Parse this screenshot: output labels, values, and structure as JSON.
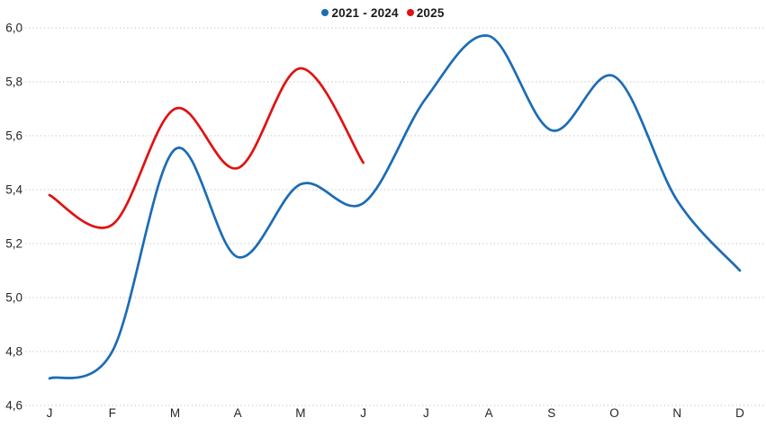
{
  "chart_data": {
    "type": "line",
    "x_categories": [
      "J",
      "F",
      "M",
      "A",
      "M",
      "J",
      "J",
      "A",
      "S",
      "O",
      "N",
      "D"
    ],
    "y_tick_labels": [
      "4,6",
      "4,8",
      "5,0",
      "5,2",
      "5,4",
      "5,6",
      "5,8",
      "6,0"
    ],
    "ylim": [
      4.6,
      6.0
    ],
    "y_tick_step": 0.2,
    "grid": "horizontal-dotted",
    "legend_position": "top-center",
    "decimal_separator": ",",
    "series": [
      {
        "name": "2021 - 2024",
        "color": "#1b6cb5",
        "values": [
          4.7,
          4.8,
          5.55,
          5.15,
          5.42,
          5.35,
          5.74,
          5.97,
          5.62,
          5.82,
          5.36,
          5.1
        ]
      },
      {
        "name": "2025",
        "color": "#e01212",
        "values": [
          5.38,
          5.27,
          5.7,
          5.48,
          5.85,
          5.5
        ]
      }
    ]
  },
  "colors": {
    "gridline": "#c9c9c9",
    "axis_text": "#262626",
    "legend_text": "#1a1a1a",
    "background": "#ffffff"
  }
}
